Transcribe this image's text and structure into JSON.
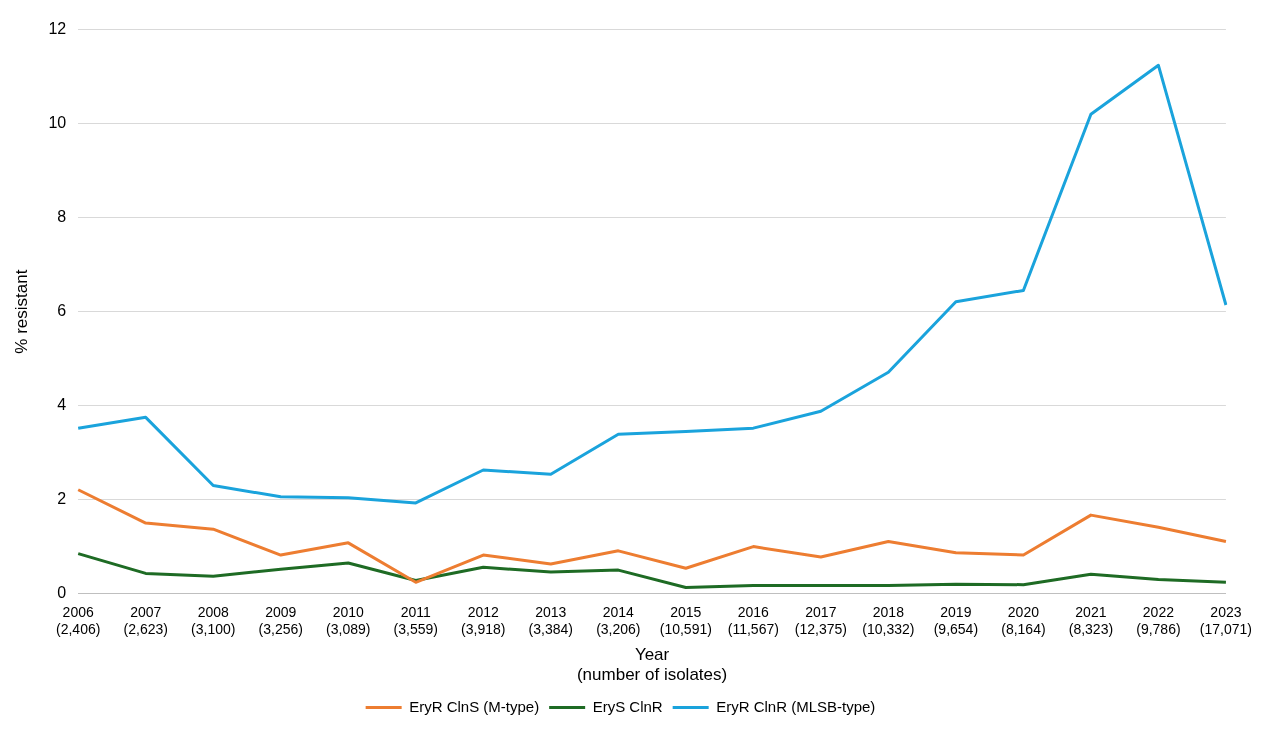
{
  "chart_data": {
    "type": "line",
    "xlabel": "Year\n(number of isolates)",
    "ylabel": "% resistant",
    "categories": [
      "2006\n(2,406)",
      "2007\n(2,623)",
      "2008\n(3,100)",
      "2009\n(3,256)",
      "2010\n(3,089)",
      "2011\n(3,559)",
      "2012\n(3,918)",
      "2013\n(3,384)",
      "2014\n(3,206)",
      "2015\n(10,591)",
      "2016\n(11,567)",
      "2017\n(12,375)",
      "2018\n(10,332)",
      "2019\n(9,654)",
      "2020\n(8,164)",
      "2021\n(8,323)",
      "2022\n(9,786)",
      "2023\n(17,071)"
    ],
    "series": [
      {
        "name": "EryR ClnS (M-type)",
        "color": "#ed7d31",
        "values": [
          2.21,
          1.5,
          1.37,
          0.82,
          1.08,
          0.24,
          0.82,
          0.63,
          0.91,
          0.54,
          1.0,
          0.78,
          1.11,
          0.87,
          0.82,
          1.67,
          1.41,
          1.11
        ]
      },
      {
        "name": "EryS ClnR",
        "color": "#1e6b24",
        "values": [
          0.85,
          0.43,
          0.37,
          0.52,
          0.65,
          0.28,
          0.56,
          0.46,
          0.5,
          0.13,
          0.17,
          0.17,
          0.17,
          0.2,
          0.19,
          0.41,
          0.3,
          0.24
        ]
      },
      {
        "name": "EryR ClnR (MLSB-type)",
        "color": "#1aa3dc",
        "values": [
          3.52,
          3.75,
          2.3,
          2.06,
          2.04,
          1.93,
          2.63,
          2.54,
          3.39,
          3.45,
          3.52,
          3.88,
          4.71,
          6.21,
          6.45,
          10.2,
          11.24,
          6.14
        ]
      }
    ],
    "ylim": [
      0,
      12
    ],
    "yticks": [
      0,
      2,
      4,
      6,
      8,
      10,
      12
    ],
    "grid": "y",
    "legend": "bottom",
    "marker": "none",
    "line_style": "solid"
  }
}
